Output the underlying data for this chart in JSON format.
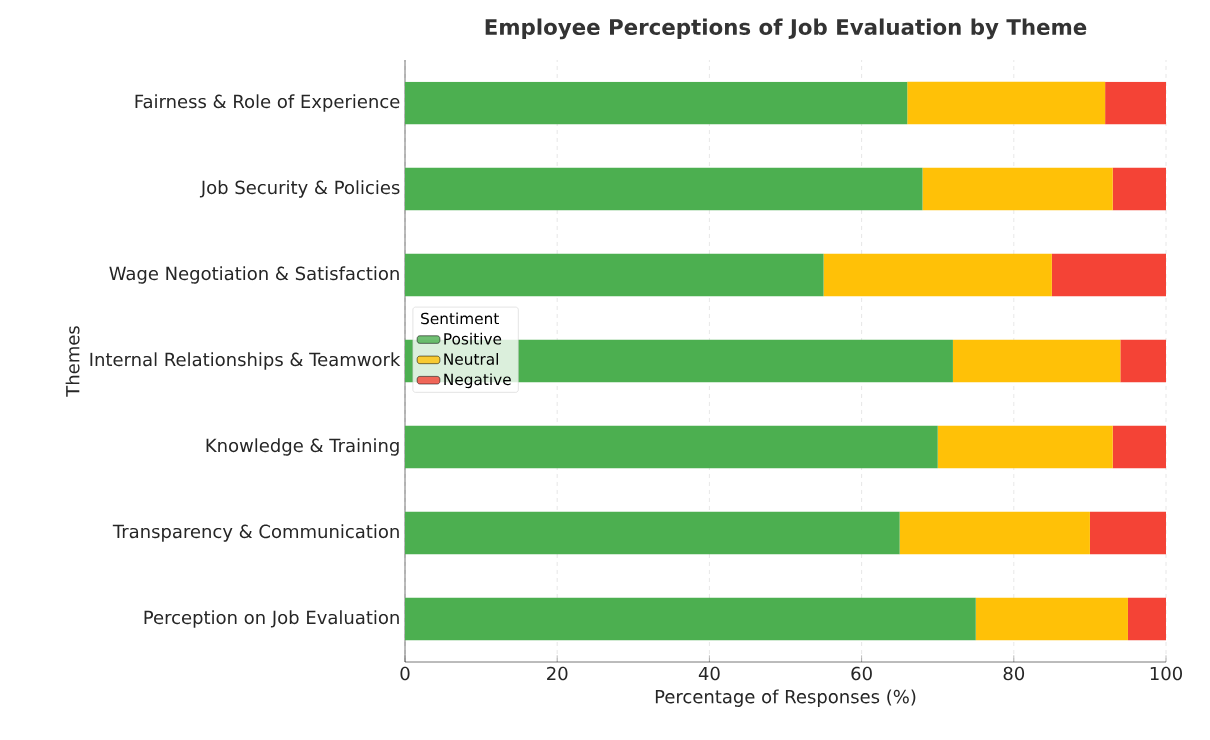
{
  "chart_data": {
    "type": "bar",
    "orientation": "horizontal",
    "stacked": true,
    "title": "Employee Perceptions of Job Evaluation by Theme",
    "xlabel": "Percentage of Responses (%)",
    "ylabel": "Themes",
    "legend_title": "Sentiment",
    "categories": [
      "Fairness & Role of Experience",
      "Job Security & Policies",
      "Wage Negotiation & Satisfaction",
      "Internal Relationships & Teamwork",
      "Knowledge & Training",
      "Transparency & Communication",
      "Perception on Job Evaluation"
    ],
    "series": [
      {
        "name": "Positive",
        "color": "#4caf50",
        "values": [
          66,
          68,
          55,
          72,
          70,
          65,
          75
        ]
      },
      {
        "name": "Neutral",
        "color": "#ffc107",
        "values": [
          26,
          25,
          30,
          22,
          23,
          25,
          20
        ]
      },
      {
        "name": "Negative",
        "color": "#f44336",
        "values": [
          8,
          7,
          15,
          6,
          7,
          10,
          5
        ]
      }
    ],
    "xlim": [
      0,
      100
    ],
    "xticks": [
      0,
      20,
      40,
      60,
      80,
      100
    ],
    "grid": "x",
    "legend": "left"
  }
}
